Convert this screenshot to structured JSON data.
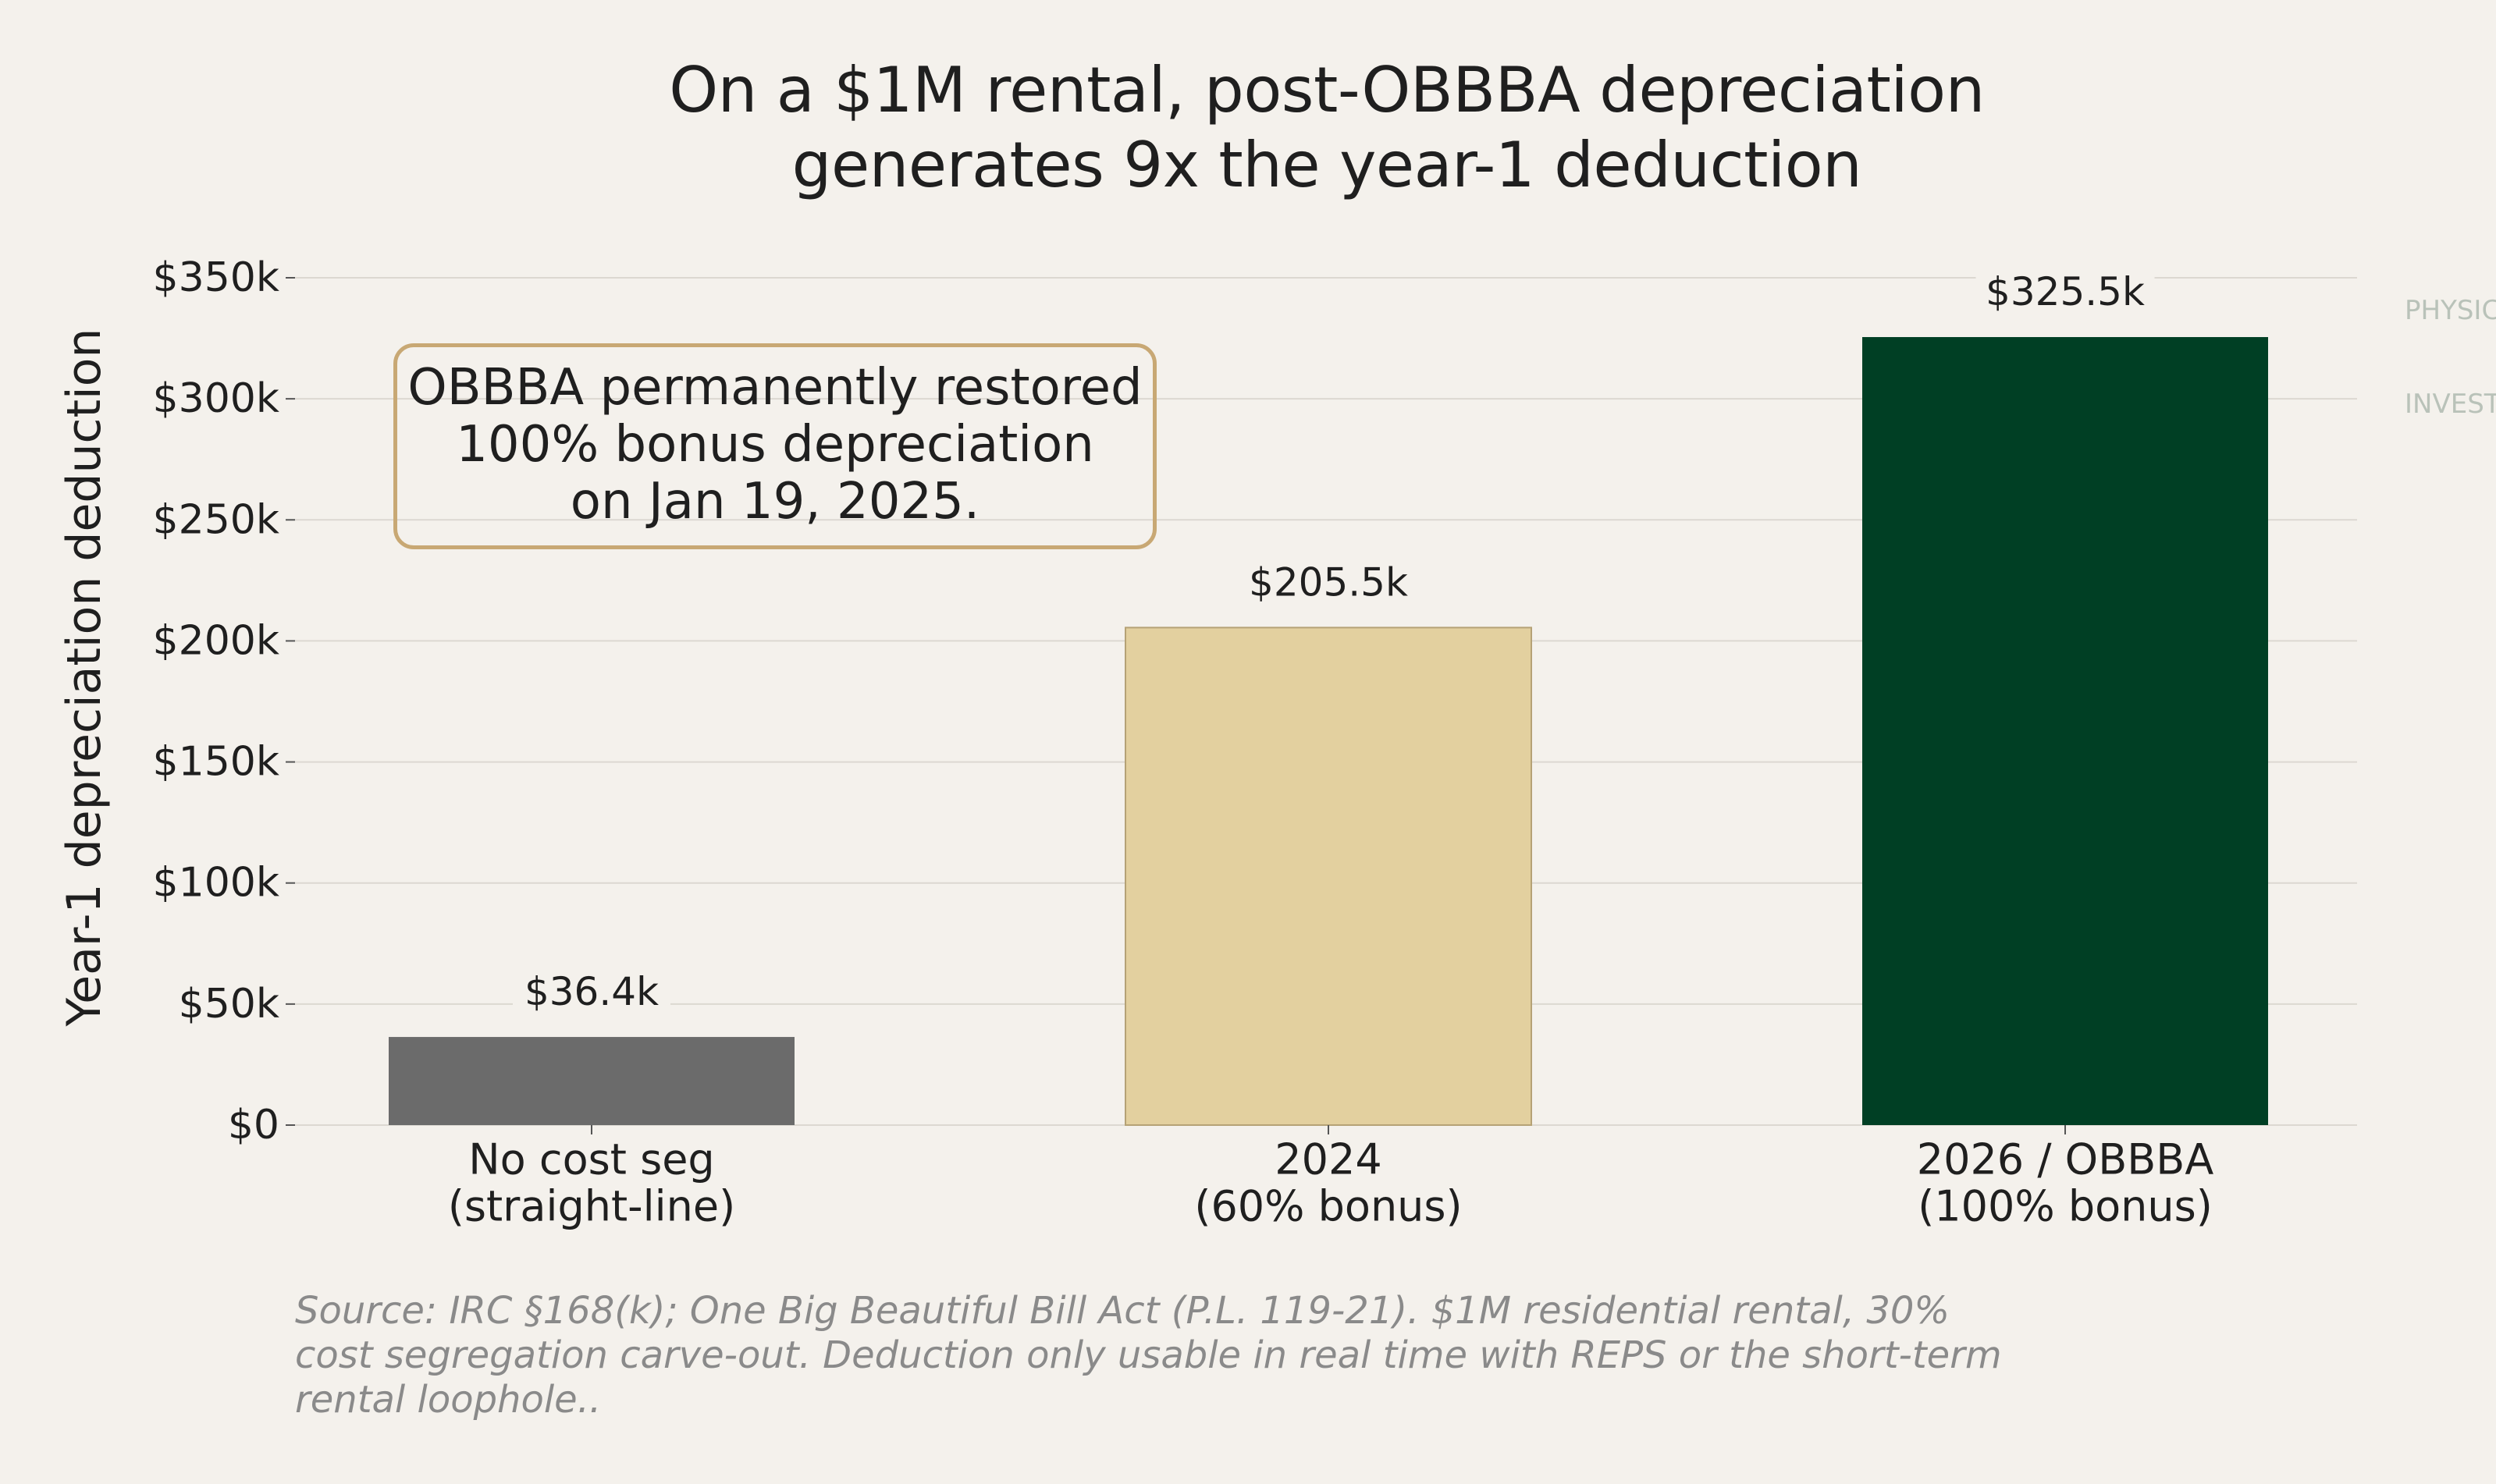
{
  "chart_data": {
    "type": "bar",
    "title_lines": [
      "On a $1M rental, post-OBBBA depreciation",
      "generates 9x the year-1 deduction"
    ],
    "xlabel": "",
    "ylabel": "Year-1 depreciation deduction",
    "ylim": [
      0,
      350000
    ],
    "yticks": [
      0,
      50000,
      100000,
      150000,
      200000,
      250000,
      300000,
      350000
    ],
    "ytick_labels": [
      "$0",
      "$50k",
      "$100k",
      "$150k",
      "$200k",
      "$250k",
      "$300k",
      "$350k"
    ],
    "grid": true,
    "categories": [
      [
        "No cost seg",
        "(straight-line)"
      ],
      [
        "2024",
        "(60% bonus)"
      ],
      [
        "2026 / OBBBA",
        "(100% bonus)"
      ]
    ],
    "values": [
      36400,
      205500,
      325500
    ],
    "value_labels": [
      "$36.4k",
      "$205.5k",
      "$325.5k"
    ],
    "colors": [
      "#6b6b6b",
      "#e3d09f",
      "#003f24"
    ],
    "annotation": {
      "lines": [
        "OBBBA permanently restored",
        "100% bonus depreciation",
        "on Jan 19, 2025."
      ],
      "border_color": "#c8a874",
      "placement": "upper-left"
    },
    "source_lines": [
      "Source: IRC §168(k); One Big Beautiful Bill Act (P.L. 119-21). $1M residential rental, 30%",
      "cost segregation carve-out. Deduction only usable in real time with REPS or the short-term",
      "rental loophole.."
    ],
    "watermark": "PHYSICIANS\n\nINVEST"
  }
}
